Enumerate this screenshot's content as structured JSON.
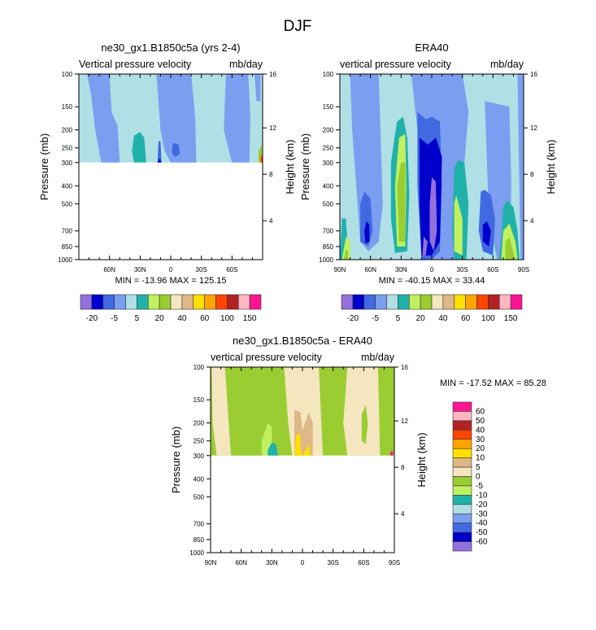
{
  "figure_title": "DJF",
  "chart_data": [
    {
      "type": "heatmap",
      "id": "model",
      "title": "ne30_gx1.B1850c5a (yrs 2-4)",
      "left_string": "Vertical pressure velocity",
      "right_string": "mb/day",
      "xlabel": "",
      "ylabel": "Pressure (mb)",
      "y2label": "Height (km)",
      "x_ticks": [
        "60N",
        "30N",
        "0",
        "30S",
        "60S"
      ],
      "x_range": [
        "90N",
        "90S"
      ],
      "y_ticks": [
        100,
        150,
        200,
        250,
        300,
        400,
        500,
        700,
        850,
        1000
      ],
      "y2_ticks": [
        16,
        12,
        8,
        4
      ],
      "ylim": [
        1000,
        100
      ],
      "data_top_pressure": 100,
      "data_bottom_pressure": 300,
      "min_max": "MIN = -13.96  MAX = 125.15",
      "colorbar": {
        "orientation": "horizontal",
        "colors": [
          "#9370db",
          "#0000cd",
          "#4169e1",
          "#7b9ef0",
          "#b0e0e6",
          "#20b2aa",
          "#c0f060",
          "#9acd32",
          "#f5e6c0",
          "#deb887",
          "#ffe000",
          "#ffa500",
          "#ff4500",
          "#b22222",
          "#ffb6c1",
          "#ff1493"
        ],
        "labels": [
          "-20",
          "-5",
          "5",
          "20",
          "40",
          "60",
          "100",
          "150"
        ]
      },
      "bands": [
        {
          "lat_from": 90,
          "lat_to": 74,
          "level": "#b0e0e6"
        },
        {
          "lat_from": 74,
          "lat_to": 47,
          "level": "#7b9ef0"
        },
        {
          "lat_from": 47,
          "lat_to": 13,
          "level": "#b0e0e6"
        },
        {
          "lat_from": 13,
          "lat_to": -20,
          "level": "#7b9ef0"
        },
        {
          "lat_from": -20,
          "lat_to": -53,
          "level": "#b0e0e6"
        },
        {
          "lat_from": -53,
          "lat_to": -78,
          "level": "#7b9ef0"
        },
        {
          "lat_from": -78,
          "lat_to": -90,
          "level": "#b0e0e6"
        }
      ]
    },
    {
      "type": "heatmap",
      "id": "obs",
      "title": "ERA40",
      "left_string": "vertical pressure velocity",
      "right_string": "mb/day",
      "ylabel": "Pressure (mb)",
      "y2label": "Height (km)",
      "x_ticks": [
        "90N",
        "60N",
        "30N",
        "0",
        "30S",
        "60S",
        "90S"
      ],
      "y_ticks": [
        100,
        150,
        200,
        250,
        300,
        400,
        500,
        700,
        850,
        1000
      ],
      "y2_ticks": [
        16,
        12,
        8,
        4
      ],
      "ylim": [
        1000,
        100
      ],
      "data_top_pressure": 100,
      "data_bottom_pressure": 1000,
      "min_max": "MIN = -40.15  MAX =  33.44",
      "colorbar": {
        "orientation": "horizontal",
        "colors": [
          "#9370db",
          "#0000cd",
          "#4169e1",
          "#7b9ef0",
          "#b0e0e6",
          "#20b2aa",
          "#c0f060",
          "#9acd32",
          "#f5e6c0",
          "#deb887",
          "#ffe000",
          "#ffa500",
          "#ff4500",
          "#b22222",
          "#ffb6c1",
          "#ff1493"
        ],
        "labels": [
          "-20",
          "-5",
          "5",
          "20",
          "40",
          "60",
          "100",
          "150"
        ]
      }
    },
    {
      "type": "heatmap",
      "id": "diff",
      "title": "ne30_gx1.B1850c5a - ERA40",
      "left_string": "vertical pressure velocity",
      "right_string": "mb/day",
      "ylabel": "Pressure (mb)",
      "y2label": "Height (km)",
      "x_ticks": [
        "90N",
        "60N",
        "30N",
        "0",
        "30S",
        "60S",
        "90S"
      ],
      "y_ticks": [
        100,
        150,
        200,
        250,
        300,
        400,
        500,
        700,
        850,
        1000
      ],
      "y2_ticks": [
        16,
        12,
        8,
        4
      ],
      "ylim": [
        1000,
        100
      ],
      "data_top_pressure": 100,
      "data_bottom_pressure": 300,
      "min_max": "MIN = -17.52  MAX =  85.28",
      "colorbar": {
        "orientation": "vertical",
        "colors": [
          "#9370db",
          "#0000cd",
          "#4169e1",
          "#7b9ef0",
          "#b0e0e6",
          "#20b2aa",
          "#c0f060",
          "#9acd32",
          "#f5e6c0",
          "#deb887",
          "#ffe000",
          "#ffa500",
          "#ff4500",
          "#b22222",
          "#ffb6c1",
          "#ff1493"
        ],
        "labels": [
          "-60",
          "-50",
          "-40",
          "-30",
          "-20",
          "-10",
          "-5",
          "0",
          "5",
          "10",
          "20",
          "30",
          "40",
          "50",
          "60"
        ]
      }
    }
  ]
}
